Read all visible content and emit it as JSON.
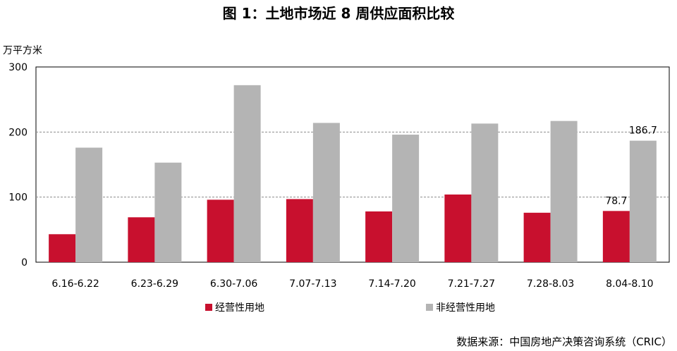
{
  "chart_data": {
    "type": "bar",
    "title": "图 1：土地市场近 8 周供应面积比较",
    "ylabel": "万平方米",
    "xlabel": "",
    "ylim": [
      0,
      300
    ],
    "yticks": [
      0,
      100,
      200,
      300
    ],
    "grid": true,
    "legend_position": "bottom-left",
    "categories": [
      "6.16-6.22",
      "6.23-6.29",
      "6.30-7.06",
      "7.07-7.13",
      "7.14-7.20",
      "7.21-7.27",
      "7.28-8.03",
      "8.04-8.10"
    ],
    "series": [
      {
        "name": "经营性用地",
        "color": "#c8102e",
        "values": [
          43,
          69,
          96,
          97,
          78,
          104,
          76,
          78.7
        ]
      },
      {
        "name": "非经营性用地",
        "color": "#b4b4b4",
        "values": [
          176,
          153,
          272,
          214,
          196,
          213,
          217,
          186.7
        ]
      }
    ],
    "data_labels": [
      {
        "series": 0,
        "index": 7,
        "text": "78.7"
      },
      {
        "series": 1,
        "index": 7,
        "text": "186.7"
      }
    ],
    "source": "数据来源：中国房地产决策咨询系统（CRIC）"
  }
}
